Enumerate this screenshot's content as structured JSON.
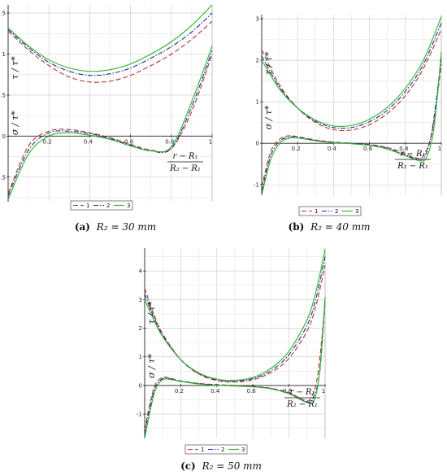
{
  "chart_data": [
    {
      "type": "line",
      "panel": "a",
      "caption": "(a) R₂ = 30 mm",
      "caption_tag": "(a)",
      "caption_eq": "R₂ = 30 mm",
      "ylabel_top": "τ / τ*",
      "ylabel_bottom": "σ / τ*",
      "xlabel_num": "r − R₁",
      "xlabel_den": "R₂ − R₁",
      "xlim": [
        0,
        1
      ],
      "ylim": [
        -0.8,
        1.6
      ],
      "xticks": [
        0.2,
        0.4,
        0.6,
        0.8,
        1
      ],
      "xtick_labels": [
        "0.2",
        "0.4",
        "0.6",
        "0.8",
        "1"
      ],
      "yticks": [
        -0.5,
        0,
        0.5,
        1,
        1.5
      ],
      "ytick_labels": [
        "-0.5",
        "0",
        "0.5",
        "1",
        "1.5"
      ],
      "legend": [
        "1",
        "2",
        "3"
      ],
      "tau_series": [
        {
          "name": "1",
          "x": [
            0,
            0.1,
            0.2,
            0.3,
            0.4,
            0.5,
            0.6,
            0.7,
            0.8,
            0.9,
            1.0
          ],
          "y": [
            1.28,
            1.05,
            0.86,
            0.72,
            0.66,
            0.67,
            0.74,
            0.86,
            1.0,
            1.18,
            1.4
          ]
        },
        {
          "name": "2",
          "x": [
            0,
            0.1,
            0.2,
            0.3,
            0.4,
            0.5,
            0.6,
            0.7,
            0.8,
            0.9,
            1.0
          ],
          "y": [
            1.3,
            1.08,
            0.9,
            0.79,
            0.74,
            0.76,
            0.83,
            0.95,
            1.09,
            1.27,
            1.5
          ]
        },
        {
          "name": "3",
          "x": [
            0,
            0.1,
            0.2,
            0.3,
            0.4,
            0.5,
            0.6,
            0.7,
            0.8,
            0.9,
            1.0
          ],
          "y": [
            1.32,
            1.1,
            0.93,
            0.83,
            0.79,
            0.81,
            0.88,
            1.0,
            1.15,
            1.35,
            1.6
          ]
        }
      ],
      "sigma_series": [
        {
          "name": "1",
          "x": [
            0,
            0.1,
            0.2,
            0.3,
            0.4,
            0.5,
            0.6,
            0.7,
            0.8,
            0.9,
            1.0
          ],
          "y": [
            -0.7,
            -0.12,
            0.06,
            0.08,
            0.04,
            -0.02,
            -0.1,
            -0.17,
            -0.15,
            0.3,
            1.0
          ]
        },
        {
          "name": "2",
          "x": [
            0,
            0.1,
            0.2,
            0.3,
            0.4,
            0.5,
            0.6,
            0.7,
            0.8,
            0.9,
            1.0
          ],
          "y": [
            -0.73,
            -0.17,
            0.04,
            0.06,
            0.03,
            -0.03,
            -0.11,
            -0.18,
            -0.15,
            0.36,
            1.04
          ]
        },
        {
          "name": "3",
          "x": [
            0,
            0.1,
            0.2,
            0.3,
            0.4,
            0.5,
            0.6,
            0.7,
            0.8,
            0.9,
            1.0
          ],
          "y": [
            -0.77,
            -0.22,
            0.0,
            0.04,
            0.01,
            -0.04,
            -0.12,
            -0.18,
            -0.13,
            0.42,
            1.1
          ]
        }
      ]
    },
    {
      "type": "line",
      "panel": "b",
      "caption": "(b) R₂ = 40 mm",
      "caption_tag": "(b)",
      "caption_eq": "R₂ = 40 mm",
      "ylabel_top": "τ / τ*",
      "ylabel_bottom": "σ / τ*",
      "xlabel_num": "r − R₁",
      "xlabel_den": "R₂ − R₁",
      "xlim": [
        0,
        1
      ],
      "ylim": [
        -1.25,
        3.1
      ],
      "xticks": [
        0.2,
        0.4,
        0.6,
        0.8,
        1
      ],
      "xtick_labels": [
        "0.2",
        "0.4",
        "0.6",
        "0.8",
        "1"
      ],
      "yticks": [
        -1,
        0,
        1,
        2,
        3
      ],
      "ytick_labels": [
        "-1",
        "0",
        "1",
        "2",
        "3"
      ],
      "legend": [
        "1",
        "2",
        "3"
      ],
      "tau_series": [
        {
          "name": "1",
          "x": [
            0,
            0.1,
            0.2,
            0.3,
            0.4,
            0.5,
            0.6,
            0.7,
            0.8,
            0.9,
            1.0
          ],
          "y": [
            2.25,
            1.4,
            0.85,
            0.5,
            0.33,
            0.32,
            0.45,
            0.72,
            1.15,
            1.8,
            2.75
          ]
        },
        {
          "name": "2",
          "x": [
            0,
            0.1,
            0.2,
            0.3,
            0.4,
            0.5,
            0.6,
            0.7,
            0.8,
            0.9,
            1.0
          ],
          "y": [
            2.1,
            1.35,
            0.85,
            0.53,
            0.38,
            0.38,
            0.52,
            0.8,
            1.25,
            1.9,
            2.9
          ]
        },
        {
          "name": "3",
          "x": [
            0,
            0.1,
            0.2,
            0.3,
            0.4,
            0.5,
            0.6,
            0.7,
            0.8,
            0.9,
            1.0
          ],
          "y": [
            2.0,
            1.3,
            0.85,
            0.56,
            0.42,
            0.43,
            0.58,
            0.87,
            1.33,
            2.0,
            3.05
          ]
        }
      ],
      "sigma_series": [
        {
          "name": "1",
          "x": [
            0,
            0.05,
            0.1,
            0.15,
            0.2,
            0.3,
            0.4,
            0.5,
            0.6,
            0.7,
            0.8,
            0.86,
            0.9,
            0.95,
            1.0
          ],
          "y": [
            -1.05,
            -0.2,
            0.1,
            0.18,
            0.16,
            0.08,
            0.03,
            0.0,
            -0.03,
            -0.1,
            -0.25,
            -0.35,
            -0.3,
            0.3,
            1.9
          ]
        },
        {
          "name": "2",
          "x": [
            0,
            0.05,
            0.1,
            0.15,
            0.2,
            0.3,
            0.4,
            0.5,
            0.6,
            0.7,
            0.8,
            0.87,
            0.91,
            0.95,
            1.0
          ],
          "y": [
            -1.15,
            -0.3,
            0.05,
            0.15,
            0.15,
            0.07,
            0.02,
            0.0,
            -0.04,
            -0.12,
            -0.28,
            -0.38,
            -0.3,
            0.35,
            2.05
          ]
        },
        {
          "name": "3",
          "x": [
            0,
            0.05,
            0.1,
            0.15,
            0.2,
            0.3,
            0.4,
            0.5,
            0.6,
            0.7,
            0.8,
            0.88,
            0.92,
            0.96,
            1.0
          ],
          "y": [
            -1.25,
            -0.4,
            0.0,
            0.12,
            0.13,
            0.06,
            0.01,
            -0.01,
            -0.05,
            -0.14,
            -0.3,
            -0.42,
            -0.32,
            0.4,
            2.2
          ]
        }
      ]
    },
    {
      "type": "line",
      "panel": "c",
      "caption": "(c) R₂ = 50 mm",
      "caption_tag": "(c)",
      "caption_eq": "R₂ = 50 mm",
      "ylabel_top": "τ / τ*",
      "ylabel_bottom": "σ / τ*",
      "xlabel_num": "r − R₁",
      "xlabel_den": "R₂ − R₁",
      "xlim": [
        0,
        1
      ],
      "ylim": [
        -1.85,
        4.8
      ],
      "xticks": [
        0.2,
        0.4,
        0.6,
        0.8,
        1
      ],
      "xtick_labels": [
        "0.2",
        "0.4",
        "0.6",
        "0.8",
        "1"
      ],
      "yticks": [
        -1,
        0,
        1,
        2,
        3,
        4
      ],
      "ytick_labels": [
        "-1",
        "0",
        "1",
        "2",
        "3",
        "4"
      ],
      "legend": [
        "1",
        "2",
        "3"
      ],
      "tau_series": [
        {
          "name": "1",
          "x": [
            0,
            0.05,
            0.1,
            0.2,
            0.3,
            0.4,
            0.5,
            0.6,
            0.7,
            0.8,
            0.9,
            0.95,
            1.0
          ],
          "y": [
            3.4,
            2.5,
            1.8,
            0.9,
            0.4,
            0.17,
            0.12,
            0.2,
            0.45,
            0.95,
            1.9,
            2.8,
            4.2
          ]
        },
        {
          "name": "2",
          "x": [
            0,
            0.05,
            0.1,
            0.2,
            0.3,
            0.4,
            0.5,
            0.6,
            0.7,
            0.8,
            0.9,
            0.95,
            1.0
          ],
          "y": [
            3.2,
            2.4,
            1.75,
            0.9,
            0.42,
            0.2,
            0.15,
            0.24,
            0.52,
            1.08,
            2.1,
            3.05,
            4.5
          ]
        },
        {
          "name": "3",
          "x": [
            0,
            0.05,
            0.1,
            0.2,
            0.3,
            0.4,
            0.5,
            0.6,
            0.7,
            0.8,
            0.9,
            0.95,
            1.0
          ],
          "y": [
            3.0,
            2.3,
            1.7,
            0.9,
            0.44,
            0.22,
            0.18,
            0.28,
            0.6,
            1.2,
            2.3,
            3.3,
            4.75
          ]
        }
      ],
      "sigma_series": [
        {
          "name": "1",
          "x": [
            0,
            0.03,
            0.06,
            0.1,
            0.15,
            0.2,
            0.3,
            0.4,
            0.5,
            0.6,
            0.7,
            0.8,
            0.88,
            0.92,
            0.96,
            1.0
          ],
          "y": [
            -1.55,
            -0.6,
            0.05,
            0.28,
            0.24,
            0.16,
            0.07,
            0.03,
            0.0,
            -0.03,
            -0.1,
            -0.25,
            -0.5,
            -0.45,
            0.4,
            2.9
          ]
        },
        {
          "name": "2",
          "x": [
            0,
            0.03,
            0.06,
            0.1,
            0.15,
            0.2,
            0.3,
            0.4,
            0.5,
            0.6,
            0.7,
            0.8,
            0.89,
            0.93,
            0.97,
            1.0
          ],
          "y": [
            -1.7,
            -0.75,
            -0.05,
            0.24,
            0.22,
            0.15,
            0.06,
            0.02,
            -0.01,
            -0.04,
            -0.11,
            -0.27,
            -0.55,
            -0.48,
            0.45,
            3.0
          ]
        },
        {
          "name": "3",
          "x": [
            0,
            0.03,
            0.06,
            0.1,
            0.15,
            0.2,
            0.3,
            0.4,
            0.5,
            0.6,
            0.7,
            0.8,
            0.9,
            0.94,
            0.97,
            1.0
          ],
          "y": [
            -1.85,
            -0.9,
            -0.15,
            0.2,
            0.2,
            0.14,
            0.05,
            0.01,
            -0.02,
            -0.05,
            -0.12,
            -0.29,
            -0.6,
            -0.5,
            0.5,
            3.1
          ]
        }
      ]
    }
  ],
  "series_colors": {
    "1": "#b5362a",
    "2": "#1e2b9e",
    "3": "#2ab52a"
  },
  "series_dashes": {
    "1": "6,3",
    "2": "6,2,1.5,2",
    "3": ""
  }
}
